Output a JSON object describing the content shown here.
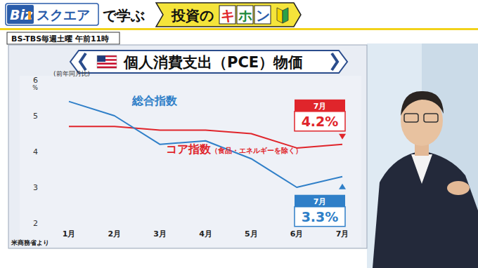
{
  "header": {
    "logo_a": "Biz",
    "logo_b": "スクエア",
    "tagline": "で学ぶ",
    "series_title": [
      "投資の",
      "キ",
      "ホ",
      "ン"
    ],
    "broadcast": "BS-TBS毎週土曜 午前11時"
  },
  "chart_data": {
    "type": "line",
    "title": "個人消費支出（PCE）物価",
    "y_label": "(前年同月比)",
    "y_unit": "%",
    "source": "米商務省より",
    "categories": [
      "1月",
      "2月",
      "3月",
      "4月",
      "5月",
      "6月",
      "7月"
    ],
    "series": [
      {
        "name": "コア指数",
        "subname": "（食品・エネルギーを除く）",
        "color": "#e0252b",
        "values": [
          4.7,
          4.7,
          4.6,
          4.6,
          4.5,
          4.1,
          4.2
        ],
        "value_labels": [
          null,
          null,
          null,
          null,
          null,
          null,
          "4.2%"
        ]
      },
      {
        "name": "総合指数",
        "color": "#2f7fc8",
        "values": [
          5.4,
          5.0,
          4.2,
          4.3,
          3.8,
          3.0,
          3.3
        ],
        "value_labels": [
          null,
          null,
          null,
          null,
          null,
          null,
          "3.3%"
        ]
      }
    ],
    "ylim": [
      2,
      6
    ],
    "yticks": [
      2,
      3,
      4,
      5,
      6
    ],
    "grid": false
  }
}
